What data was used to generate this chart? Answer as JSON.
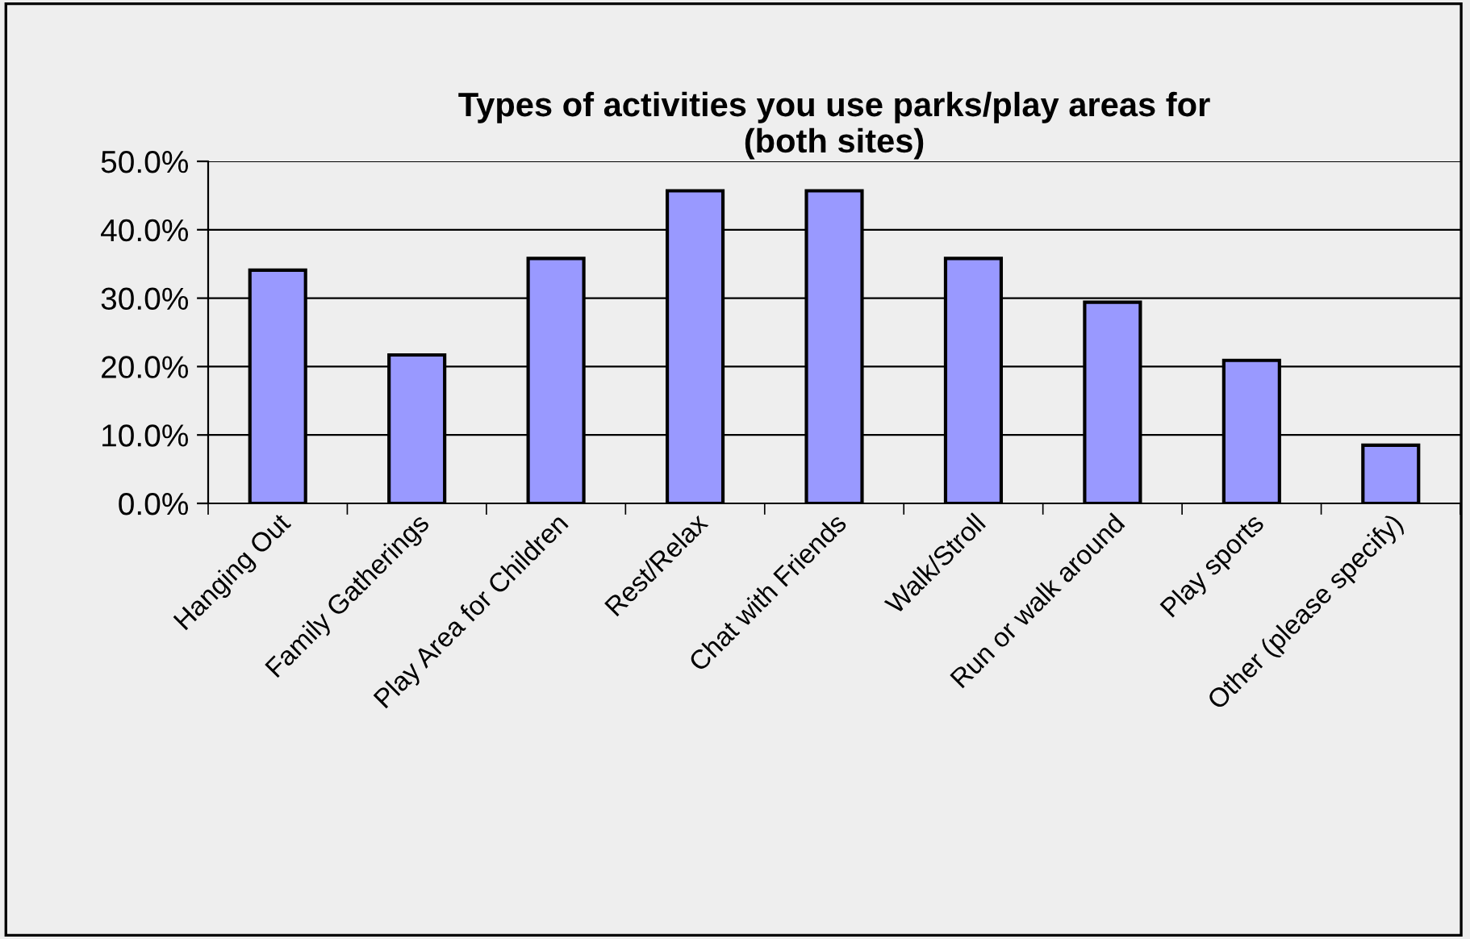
{
  "chart_data": {
    "type": "bar",
    "title": "Types of activities you use parks/play areas for\n(both sites)",
    "categories": [
      "Hanging Out",
      "Family Gatherings",
      "Play Area for Children",
      "Rest/Relax",
      "Chat with Friends",
      "Walk/Stroll",
      "Run or walk around",
      "Play sports",
      "Other (please specify)"
    ],
    "values": [
      34.1,
      21.7,
      35.8,
      45.7,
      45.7,
      35.8,
      29.4,
      20.9,
      8.5
    ],
    "color": "#9999ff",
    "ylim": [
      0,
      50
    ],
    "yticks": [
      {
        "value": 0,
        "label": "0.0%"
      },
      {
        "value": 10,
        "label": "10.0%"
      },
      {
        "value": 20,
        "label": "20.0%"
      },
      {
        "value": 30,
        "label": "30.0%"
      },
      {
        "value": 40,
        "label": "40.0%"
      },
      {
        "value": 50,
        "label": "50.0%"
      }
    ],
    "grid": "y",
    "legend": false
  }
}
